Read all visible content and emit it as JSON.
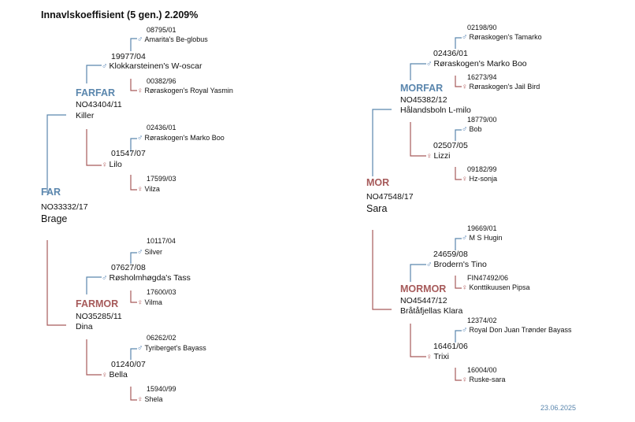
{
  "title": "Innavlskoeffisient (5 gen.) 2.209%",
  "date": "23.06.2025",
  "colors": {
    "male": "#5a86ad",
    "female": "#a65a5a"
  },
  "icons": {
    "male": "male-symbol-icon",
    "female": "female-symbol-icon"
  },
  "far": {
    "role": "FAR",
    "reg": "NO33332/17",
    "name": "Brage",
    "farfar": {
      "role": "FARFAR",
      "reg": "NO43404/11",
      "name": "Killer",
      "father": {
        "reg": "19977/04",
        "name": "Klokkarsteinen's W-oscar",
        "father": {
          "reg": "08795/01",
          "name": "Amarita's Be-globus"
        },
        "mother": {
          "reg": "00382/96",
          "name": "Røraskogen's Royal Yasmin"
        }
      },
      "mother": {
        "reg": "01547/07",
        "name": "Lilo",
        "father": {
          "reg": "02436/01",
          "name": "Røraskogen's Marko Boo"
        },
        "mother": {
          "reg": "17599/03",
          "name": "Vilza"
        }
      }
    },
    "farmor": {
      "role": "FARMOR",
      "reg": "NO35285/11",
      "name": "Dina",
      "father": {
        "reg": "07627/08",
        "name": "Røsholmhøgda's Tass",
        "father": {
          "reg": "10117/04",
          "name": "Silver"
        },
        "mother": {
          "reg": "17600/03",
          "name": "Vilma"
        }
      },
      "mother": {
        "reg": "01240/07",
        "name": "Bella",
        "father": {
          "reg": "06262/02",
          "name": "Tyriberget's Bayass"
        },
        "mother": {
          "reg": "15940/99",
          "name": "Shela"
        }
      }
    }
  },
  "mor": {
    "role": "MOR",
    "reg": "NO47548/17",
    "name": "Sara",
    "morfar": {
      "role": "MORFAR",
      "reg": "NO45382/12",
      "name": "Hålandsboln L-milo",
      "father": {
        "reg": "02436/01",
        "name": "Røraskogen's Marko Boo",
        "father": {
          "reg": "02198/90",
          "name": "Røraskogen's Tamarko"
        },
        "mother": {
          "reg": "16273/94",
          "name": "Røraskogen's Jail Bird"
        }
      },
      "mother": {
        "reg": "02507/05",
        "name": "Lizzi",
        "father": {
          "reg": "18779/00",
          "name": "Bob"
        },
        "mother": {
          "reg": "09182/99",
          "name": "Hz-sonja"
        }
      }
    },
    "mormor": {
      "role": "MORMOR",
      "reg": "NO45447/12",
      "name": "Bråtåfjellas Klara",
      "father": {
        "reg": "24659/08",
        "name": "Brodern's Tino",
        "father": {
          "reg": "19669/01",
          "name": "M S Hugin"
        },
        "mother": {
          "reg": "FIN47492/06",
          "name": "Konttikuusen Pipsa"
        }
      },
      "mother": {
        "reg": "16461/06",
        "name": "Trixi",
        "father": {
          "reg": "12374/02",
          "name": "Royal Don Juan Trønder Bayass"
        },
        "mother": {
          "reg": "16004/00",
          "name": "Ruske-sara"
        }
      }
    }
  }
}
